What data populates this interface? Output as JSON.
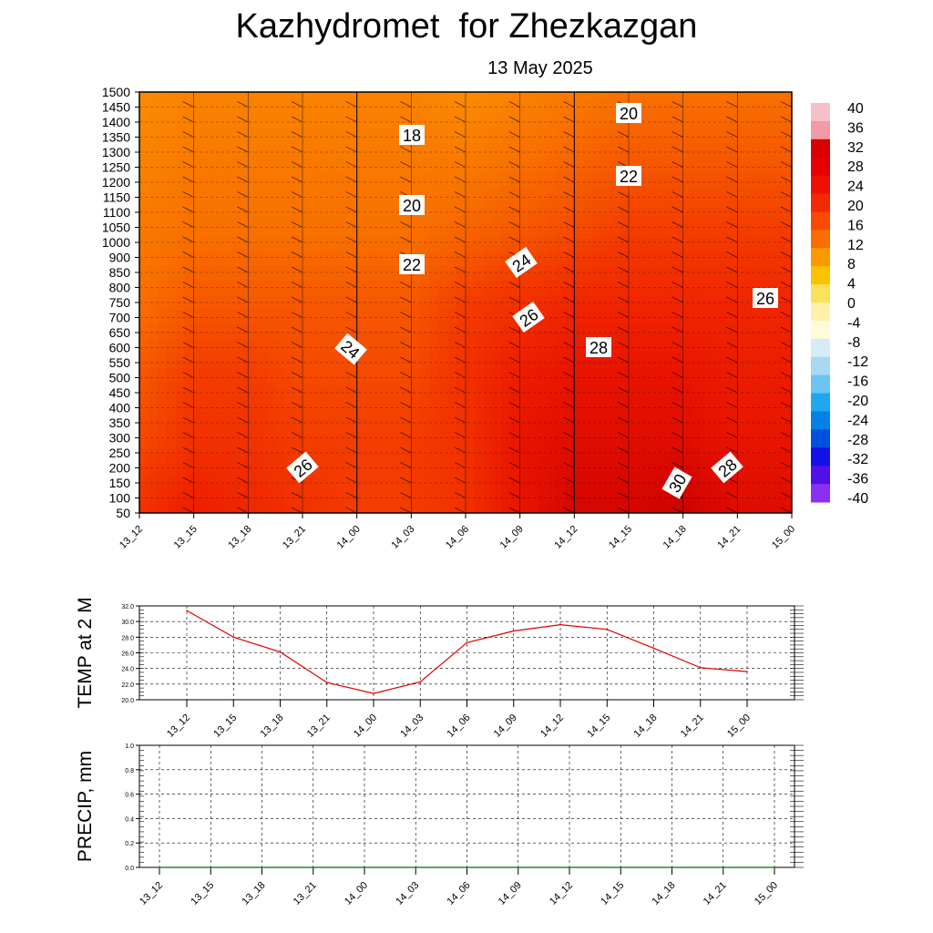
{
  "title": "Kazhydromet  for Zhezkazgan",
  "subtitle": "13 May 2025",
  "chart_data": [
    {
      "type": "heatmap",
      "description_kind": "time-height cross-section of temperature with wind barbs",
      "x_categories": [
        "13_12",
        "13_15",
        "13_18",
        "13_21",
        "14_00",
        "14_03",
        "14_06",
        "14_09",
        "14_12",
        "14_15",
        "14_18",
        "14_21",
        "15_00"
      ],
      "y_levels": [
        50,
        100,
        150,
        200,
        250,
        300,
        350,
        400,
        450,
        500,
        550,
        600,
        650,
        700,
        750,
        800,
        850,
        900,
        1000,
        1050,
        1100,
        1150,
        1200,
        1250,
        1300,
        1350,
        1400,
        1450,
        1500
      ],
      "temperature_grid": [
        [
          25,
          23,
          22,
          20,
          19,
          18,
          17
        ],
        [
          27,
          25,
          24,
          22,
          20,
          19,
          18
        ],
        [
          26,
          25,
          24,
          22,
          20,
          19,
          18
        ],
        [
          25,
          24,
          23,
          22,
          20,
          19,
          18
        ],
        [
          24,
          24,
          23,
          22,
          20,
          19,
          18
        ],
        [
          24,
          24,
          23,
          22,
          20,
          19,
          18
        ],
        [
          25,
          25,
          25,
          24,
          21,
          19,
          17
        ],
        [
          28,
          28,
          27,
          25,
          22,
          20,
          18
        ],
        [
          30,
          29,
          28,
          26,
          23,
          21,
          19
        ],
        [
          30,
          29,
          28,
          26,
          24,
          22,
          20
        ],
        [
          31,
          29,
          28,
          26,
          24,
          22,
          20
        ],
        [
          29,
          28,
          27,
          26,
          24,
          22,
          20
        ],
        [
          29,
          28,
          27,
          26,
          24,
          22,
          20
        ]
      ],
      "contour_labels": [
        "18",
        "20",
        "20",
        "22",
        "22",
        "24",
        "24",
        "26",
        "26",
        "26",
        "28",
        "28",
        "30"
      ],
      "colorbar": {
        "ticks": [
          "40",
          "36",
          "32",
          "28",
          "24",
          "20",
          "16",
          "12",
          "8",
          "4",
          "0",
          "-4",
          "-8",
          "-12",
          "-16",
          "-20",
          "-24",
          "-28",
          "-32",
          "-36",
          "-40"
        ],
        "colors": [
          "#f5c0c8",
          "#f39aa4",
          "#d90000",
          "#e60000",
          "#ee1000",
          "#f32a00",
          "#f64a00",
          "#f86e00",
          "#fa9a00",
          "#fbc200",
          "#fde15a",
          "#fef2a8",
          "#fffbd8",
          "#d6ecf8",
          "#a8d8f2",
          "#6cc4f2",
          "#1ea8f0",
          "#0080e8",
          "#0050e0",
          "#1410e8",
          "#5010e8",
          "#8a30f0"
        ]
      }
    },
    {
      "type": "line",
      "ylabel": "TEMP at 2 M",
      "categories": [
        "13_12",
        "13_15",
        "13_18",
        "13_21",
        "14_00",
        "14_03",
        "14_06",
        "14_09",
        "14_12",
        "14_15",
        "14_18",
        "14_21",
        "15_00"
      ],
      "values": [
        31.4,
        28.0,
        26.1,
        22.2,
        20.8,
        22.3,
        27.3,
        28.8,
        29.6,
        29.0,
        26.6,
        24.1,
        23.6
      ],
      "ylim": [
        20.0,
        32.0
      ],
      "yticks": [
        "20.0",
        "22.0",
        "24.0",
        "26.0",
        "28.0",
        "30.0",
        "32.0"
      ],
      "color": "#e00000",
      "grid": true
    },
    {
      "type": "line",
      "ylabel": "PRECIP, mm",
      "categories": [
        "13_12",
        "13_15",
        "13_18",
        "13_21",
        "14_00",
        "14_03",
        "14_06",
        "14_09",
        "14_12",
        "14_15",
        "14_18",
        "14_21",
        "15_00"
      ],
      "values": [
        0,
        0,
        0,
        0,
        0,
        0,
        0,
        0,
        0,
        0,
        0,
        0,
        0
      ],
      "ylim": [
        0.0,
        1.0
      ],
      "yticks": [
        "0.0",
        "0.2",
        "0.4",
        "0.6",
        "0.8",
        "1.0"
      ],
      "color": "#007000",
      "grid": true
    }
  ]
}
